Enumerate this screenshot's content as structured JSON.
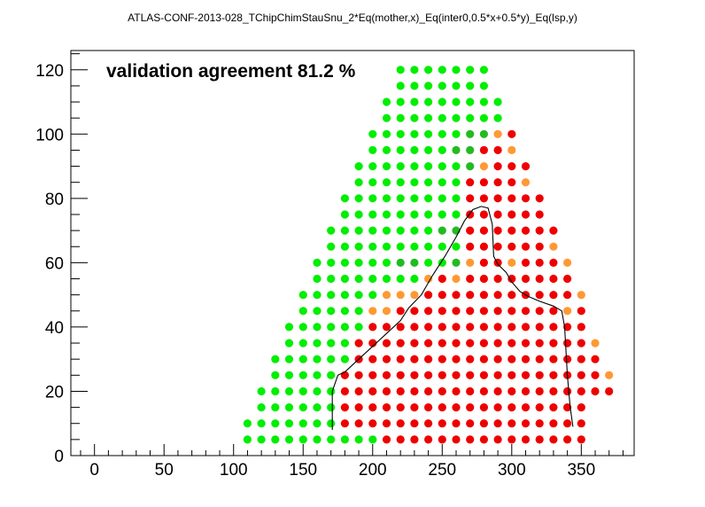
{
  "chart_data": {
    "type": "scatter",
    "title": "ATLAS-CONF-2013-028_TChipChimStauSnu_2*Eq(mother,x)_Eq(inter0,0.5*x+0.5*y)_Eq(lsp,y)",
    "annotation": "validation agreement 81.2 %",
    "xlabel": "",
    "ylabel": "",
    "xlim": [
      -17,
      388
    ],
    "ylim": [
      0,
      126
    ],
    "x_ticks": [
      0,
      50,
      100,
      150,
      200,
      250,
      300,
      350
    ],
    "y_ticks": [
      0,
      20,
      40,
      60,
      80,
      100,
      120
    ],
    "grid": false,
    "colors": {
      "allowed_both": "#00ee00",
      "allowed_official_only": "#22bb22",
      "excluded_official_only": "#ff9933",
      "excluded_both": "#ee0000",
      "contour": "#000000"
    },
    "rows": [
      {
        "y": 5,
        "x_start": 110,
        "green_end": 200,
        "dark": [],
        "orange": [],
        "x_end": 350
      },
      {
        "y": 10,
        "x_start": 110,
        "green_end": 170,
        "dark": [],
        "orange": [],
        "x_end": 350
      },
      {
        "y": 15,
        "x_start": 120,
        "green_end": 170,
        "dark": [],
        "orange": [],
        "x_end": 350
      },
      {
        "y": 20,
        "x_start": 120,
        "green_end": 170,
        "dark": [],
        "orange": [],
        "x_end": 370
      },
      {
        "y": 25,
        "x_start": 130,
        "green_end": 170,
        "dark": [],
        "orange": [
          370
        ],
        "x_end": 370
      },
      {
        "y": 30,
        "x_start": 130,
        "green_end": 180,
        "dark": [],
        "orange": [],
        "x_end": 360
      },
      {
        "y": 35,
        "x_start": 140,
        "green_end": 180,
        "dark": [],
        "orange": [
          360
        ],
        "x_end": 360
      },
      {
        "y": 40,
        "x_start": 140,
        "green_end": 190,
        "dark": [],
        "orange": [],
        "x_end": 350
      },
      {
        "y": 45,
        "x_start": 150,
        "green_end": 190,
        "dark": [],
        "orange": [
          200,
          210,
          340
        ],
        "x_end": 350
      },
      {
        "y": 50,
        "x_start": 150,
        "green_end": 200,
        "dark": [],
        "orange": [
          210,
          220,
          230,
          350
        ],
        "x_end": 350
      },
      {
        "y": 55,
        "x_start": 160,
        "green_end": 230,
        "dark": [],
        "orange": [
          240,
          260
        ],
        "x_end": 340
      },
      {
        "y": 60,
        "x_start": 160,
        "green_end": 250,
        "dark": [
          220,
          230,
          260
        ],
        "orange": [
          270,
          300,
          340
        ],
        "x_end": 340
      },
      {
        "y": 65,
        "x_start": 170,
        "green_end": 260,
        "dark": [],
        "orange": [
          330
        ],
        "x_end": 330
      },
      {
        "y": 70,
        "x_start": 170,
        "green_end": 260,
        "dark": [
          250,
          260
        ],
        "orange": [],
        "x_end": 330
      },
      {
        "y": 75,
        "x_start": 180,
        "green_end": 260,
        "dark": [],
        "orange": [],
        "x_end": 320
      },
      {
        "y": 80,
        "x_start": 180,
        "green_end": 260,
        "dark": [],
        "orange": [],
        "x_end": 320
      },
      {
        "y": 85,
        "x_start": 190,
        "green_end": 260,
        "dark": [],
        "orange": [
          310
        ],
        "x_end": 310
      },
      {
        "y": 90,
        "x_start": 190,
        "green_end": 260,
        "dark": [
          270
        ],
        "orange": [
          280
        ],
        "x_end": 310
      },
      {
        "y": 95,
        "x_start": 200,
        "green_end": 260,
        "dark": [
          260,
          270
        ],
        "orange": [
          300
        ],
        "x_end": 300
      },
      {
        "y": 100,
        "x_start": 200,
        "green_end": 280,
        "dark": [
          270,
          280
        ],
        "orange": [
          290
        ],
        "x_end": 300
      },
      {
        "y": 105,
        "x_start": 210,
        "green_end": 290,
        "dark": [],
        "orange": [],
        "x_end": 290
      },
      {
        "y": 110,
        "x_start": 210,
        "green_end": 290,
        "dark": [],
        "orange": [],
        "x_end": 290
      },
      {
        "y": 115,
        "x_start": 220,
        "green_end": 280,
        "dark": [],
        "orange": [],
        "x_end": 280
      },
      {
        "y": 120,
        "x_start": 220,
        "green_end": 280,
        "dark": [],
        "orange": [],
        "x_end": 280
      }
    ],
    "contour": [
      [
        171,
        8
      ],
      [
        171,
        20
      ],
      [
        175,
        25
      ],
      [
        180,
        26
      ],
      [
        190,
        30
      ],
      [
        200,
        34
      ],
      [
        210,
        38
      ],
      [
        220,
        42
      ],
      [
        226,
        46
      ],
      [
        235,
        50
      ],
      [
        243,
        56
      ],
      [
        252,
        62
      ],
      [
        260,
        68
      ],
      [
        266,
        73
      ],
      [
        272,
        76.5
      ],
      [
        278,
        77.5
      ],
      [
        283,
        77
      ],
      [
        286,
        72
      ],
      [
        287,
        62
      ],
      [
        290,
        59.5
      ],
      [
        296,
        57
      ],
      [
        300,
        54
      ],
      [
        306,
        51
      ],
      [
        312,
        49.5
      ],
      [
        320,
        48
      ],
      [
        330,
        46.5
      ],
      [
        336,
        45
      ],
      [
        338,
        40
      ],
      [
        340,
        25
      ],
      [
        342,
        15
      ],
      [
        344,
        9
      ]
    ]
  }
}
